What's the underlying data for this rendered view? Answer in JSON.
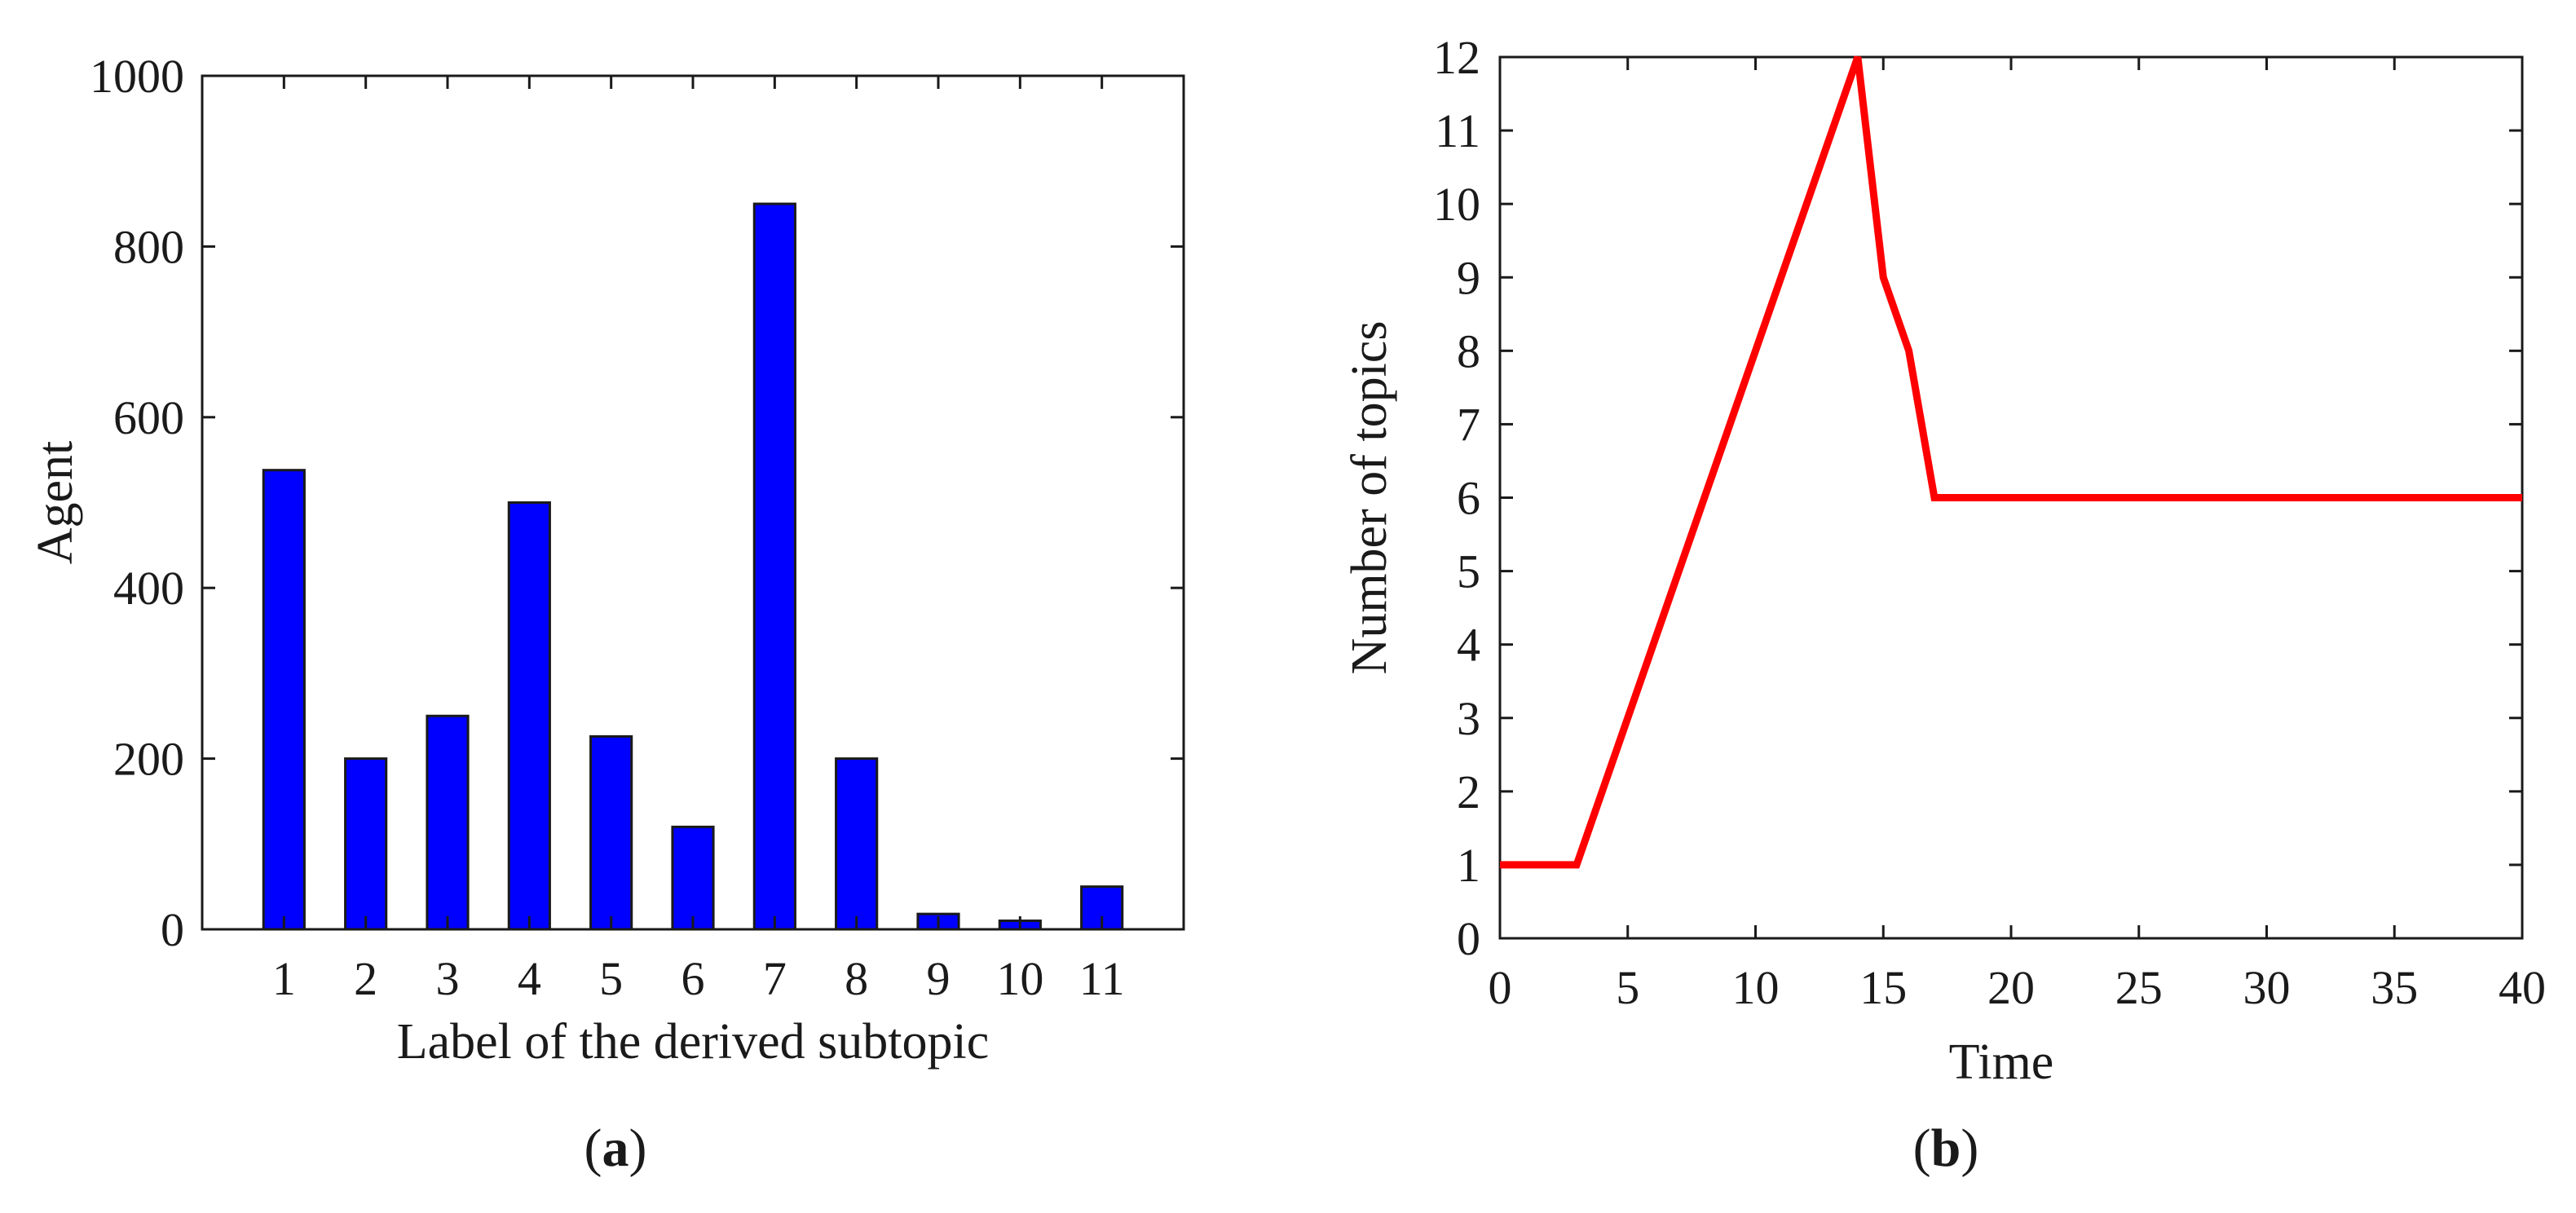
{
  "chart_data": [
    {
      "type": "bar",
      "panel_label": "a",
      "categories": [
        "1",
        "2",
        "3",
        "4",
        "5",
        "6",
        "7",
        "8",
        "9",
        "10",
        "11"
      ],
      "values": [
        538,
        200,
        250,
        500,
        226,
        120,
        850,
        200,
        18,
        10,
        50
      ],
      "xlabel": "Label of the derived subtopic",
      "ylabel": "Agent",
      "ylim": [
        0,
        1000
      ],
      "yticks": [
        "0",
        "200",
        "400",
        "600",
        "800",
        "1000"
      ],
      "xlim": [
        0,
        12
      ],
      "bar_color": "#0000ff",
      "grid": false
    },
    {
      "type": "line",
      "panel_label": "b",
      "x": [
        0,
        3,
        14,
        15,
        16,
        17,
        40
      ],
      "y": [
        1,
        1,
        12,
        9,
        8,
        6,
        6
      ],
      "xlabel": "Time",
      "ylabel": "Number of topics",
      "xlim": [
        0,
        40
      ],
      "ylim": [
        0,
        12
      ],
      "xticks": [
        "0",
        "5",
        "10",
        "15",
        "20",
        "25",
        "30",
        "35",
        "40"
      ],
      "yticks": [
        "0",
        "1",
        "2",
        "3",
        "4",
        "5",
        "6",
        "7",
        "8",
        "9",
        "10",
        "11",
        "12"
      ],
      "line_color": "#ff0000",
      "grid": false
    }
  ]
}
